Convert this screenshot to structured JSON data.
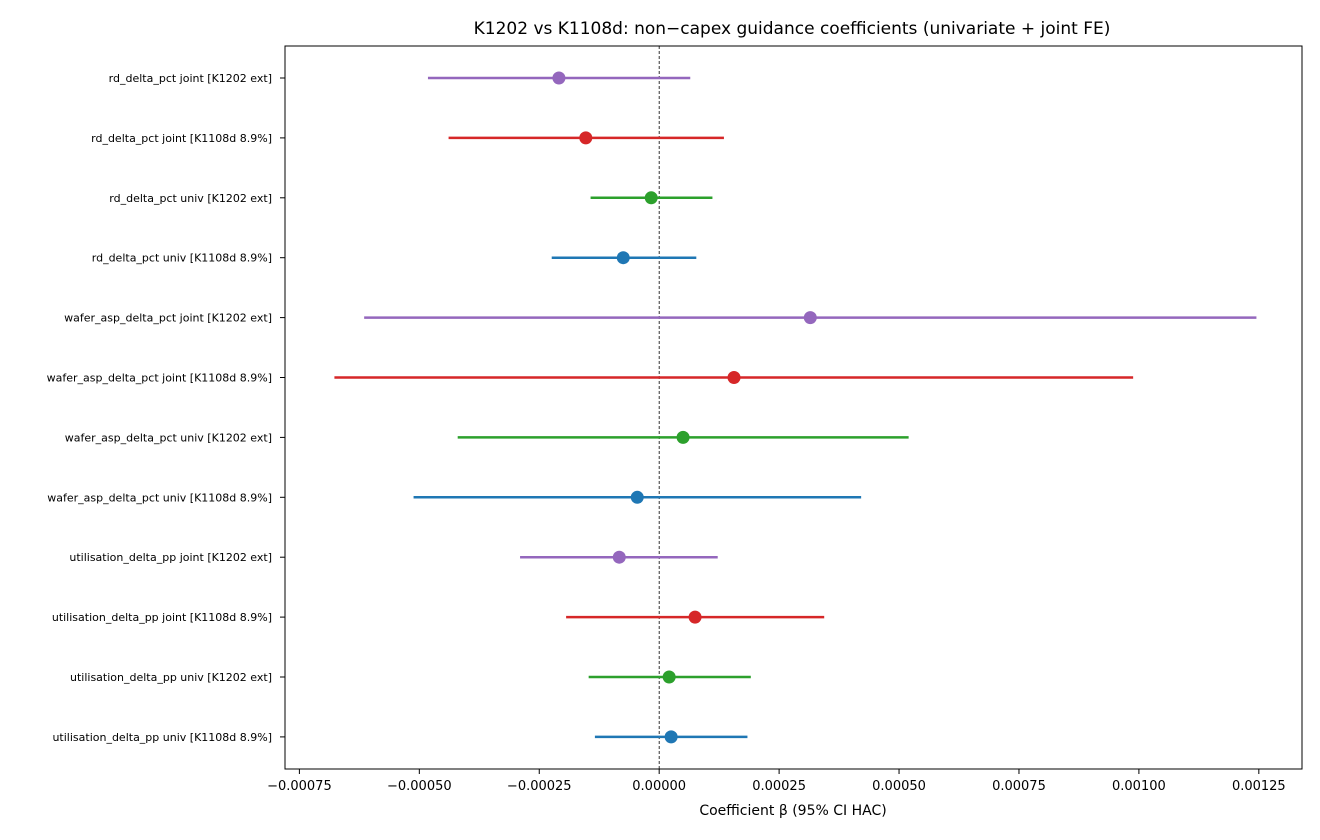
{
  "chart_data": {
    "type": "scatter",
    "title": "K1202 vs K1108d: non−capex guidance coefficients (univariate + joint FE)",
    "xlabel": "Coefficient β (95% CI HAC)",
    "ylabel": "",
    "xlim": [
      -0.00078,
      0.00134
    ],
    "x_ticks": [
      -0.00075,
      -0.0005,
      -0.00025,
      0.0,
      0.00025,
      0.0005,
      0.00075,
      0.001,
      0.00125
    ],
    "x_tick_labels": [
      "−0.00075",
      "−0.00050",
      "−0.00025",
      "0.00000",
      "0.00025",
      "0.00050",
      "0.00075",
      "0.00100",
      "0.00125"
    ],
    "reference_line_x": 0,
    "grid": false,
    "colors": {
      "univ_K1108d": "#1f77b4",
      "univ_K1202": "#2ca02c",
      "joint_K1108d": "#d62728",
      "joint_K1202": "#9467bd"
    },
    "rows": [
      {
        "label": "rd_delta_pct joint [K1202 ext]",
        "coef": -0.000209,
        "lo": -0.000482,
        "hi": 6.48e-05,
        "color": "#9467bd"
      },
      {
        "label": "rd_delta_pct joint [K1108d 8.9%]",
        "coef": -0.000153,
        "lo": -0.000439,
        "hi": 0.000135,
        "color": "#d62728"
      },
      {
        "label": "rd_delta_pct univ [K1202 ext]",
        "coef": -1.66e-05,
        "lo": -0.000143,
        "hi": 0.000111,
        "color": "#2ca02c"
      },
      {
        "label": "rd_delta_pct univ [K1108d 8.9%]",
        "coef": -7.49e-05,
        "lo": -0.000224,
        "hi": 7.74e-05,
        "color": "#1f77b4"
      },
      {
        "label": "wafer_asp_delta_pct joint [K1202 ext]",
        "coef": 0.000315,
        "lo": -0.000615,
        "hi": 0.001245,
        "color": "#9467bd"
      },
      {
        "label": "wafer_asp_delta_pct joint [K1108d 8.9%]",
        "coef": 0.000156,
        "lo": -0.000677,
        "hi": 0.000988,
        "color": "#d62728"
      },
      {
        "label": "wafer_asp_delta_pct univ [K1202 ext]",
        "coef": 4.98e-05,
        "lo": -0.00042,
        "hi": 0.00052,
        "color": "#2ca02c"
      },
      {
        "label": "wafer_asp_delta_pct univ [K1108d 8.9%]",
        "coef": -4.57e-05,
        "lo": -0.000512,
        "hi": 0.000421,
        "color": "#1f77b4"
      },
      {
        "label": "utilisation_delta_pp joint [K1202 ext]",
        "coef": -8.32e-05,
        "lo": -0.00029,
        "hi": 0.000122,
        "color": "#9467bd"
      },
      {
        "label": "utilisation_delta_pp joint [K1108d 8.9%]",
        "coef": 7.48e-05,
        "lo": -0.000194,
        "hi": 0.000344,
        "color": "#d62728"
      },
      {
        "label": "utilisation_delta_pp univ [K1202 ext]",
        "coef": 2.08e-05,
        "lo": -0.000147,
        "hi": 0.000191,
        "color": "#2ca02c"
      },
      {
        "label": "utilisation_delta_pp univ [K1108d 8.9%]",
        "coef": 2.49e-05,
        "lo": -0.000134,
        "hi": 0.000184,
        "color": "#1f77b4"
      }
    ]
  }
}
